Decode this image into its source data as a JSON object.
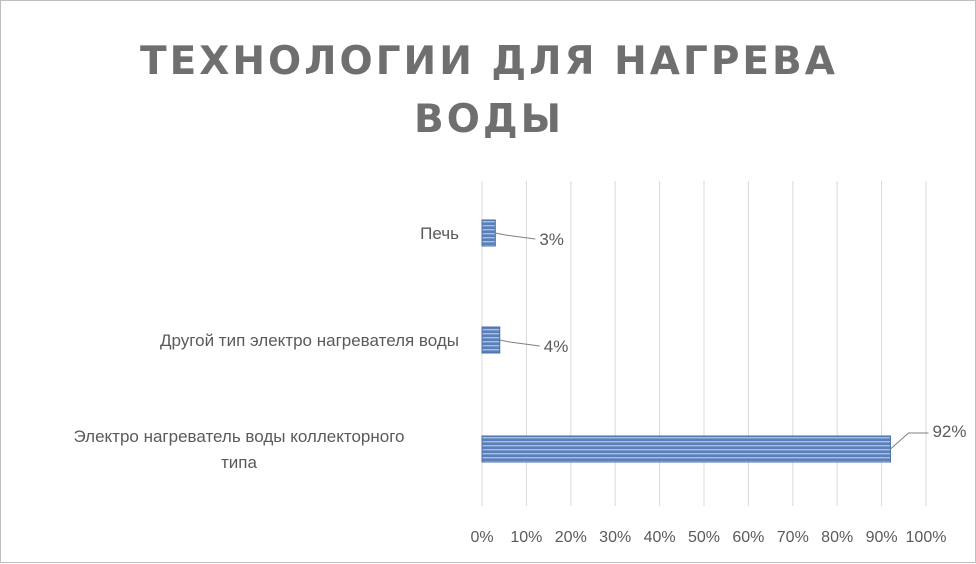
{
  "chart_data": {
    "type": "bar",
    "orientation": "horizontal",
    "title": "ТЕХНОЛОГИИ ДЛЯ НАГРЕВА ВОДЫ",
    "categories": [
      "Печь",
      "Другой тип электро нагревателя воды",
      "Электро нагреватель воды коллекторного типа"
    ],
    "values": [
      3,
      4,
      92
    ],
    "data_labels": [
      "3%",
      "4%",
      "92%"
    ],
    "xlim": [
      0,
      100
    ],
    "x_ticks": [
      "0%",
      "10%",
      "20%",
      "30%",
      "40%",
      "50%",
      "60%",
      "70%",
      "80%",
      "90%",
      "100%"
    ],
    "grid": "vertical",
    "legend": "none",
    "bar_color": "#5b7fb9"
  }
}
